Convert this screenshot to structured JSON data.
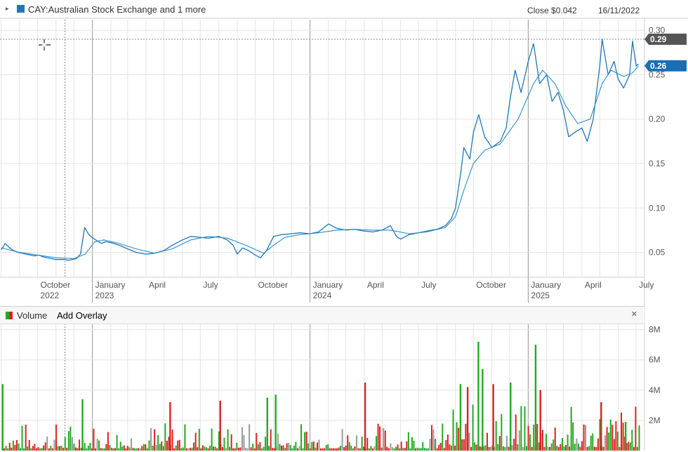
{
  "header": {
    "legend_toggle": "▸",
    "series_label": "CAY:Australian Stock Exchange and 1 more",
    "close_label": "Close $0.042",
    "date_label": "16/11/2022"
  },
  "volume_panel": {
    "label": "Volume",
    "add_overlay": "Add Overlay",
    "close": "×"
  },
  "colors": {
    "price_line": "#1f77b4",
    "ma_line": "#2a8fc9",
    "volume_up": "#22aa22",
    "volume_down": "#dd2222",
    "volume_neutral": "#999999",
    "grid": "#e3e3e3",
    "tag_dark": "#555555",
    "tag_blue": "#1a6fb3"
  },
  "chart_data": [
    {
      "type": "line",
      "series": [
        {
          "name": "CAY:Australian Stock Exchange",
          "points": [
            [
              "2022-08-01",
              0.053
            ],
            [
              "2022-08-08",
              0.06
            ],
            [
              "2022-08-15",
              0.055
            ],
            [
              "2022-08-22",
              0.052
            ],
            [
              "2022-08-29",
              0.05
            ],
            [
              "2022-09-05",
              0.049
            ],
            [
              "2022-09-12",
              0.048
            ],
            [
              "2022-09-19",
              0.047
            ],
            [
              "2022-09-26",
              0.046
            ],
            [
              "2022-10-03",
              0.047
            ],
            [
              "2022-10-10",
              0.045
            ],
            [
              "2022-10-17",
              0.044
            ],
            [
              "2022-10-24",
              0.043
            ],
            [
              "2022-10-31",
              0.042
            ],
            [
              "2022-11-07",
              0.042
            ],
            [
              "2022-11-16",
              0.042
            ],
            [
              "2022-11-21",
              0.041
            ],
            [
              "2022-11-28",
              0.042
            ],
            [
              "2022-12-05",
              0.043
            ],
            [
              "2022-12-12",
              0.048
            ],
            [
              "2022-12-19",
              0.078
            ],
            [
              "2022-12-26",
              0.07
            ],
            [
              "2023-01-02",
              0.066
            ],
            [
              "2023-01-09",
              0.063
            ],
            [
              "2023-01-16",
              0.06
            ],
            [
              "2023-01-23",
              0.062
            ],
            [
              "2023-02-01",
              0.061
            ],
            [
              "2023-02-15",
              0.058
            ],
            [
              "2023-03-01",
              0.054
            ],
            [
              "2023-03-15",
              0.05
            ],
            [
              "2023-04-01",
              0.048
            ],
            [
              "2023-04-15",
              0.049
            ],
            [
              "2023-05-01",
              0.052
            ],
            [
              "2023-05-15",
              0.058
            ],
            [
              "2023-06-01",
              0.064
            ],
            [
              "2023-06-15",
              0.068
            ],
            [
              "2023-07-01",
              0.067
            ],
            [
              "2023-07-15",
              0.066
            ],
            [
              "2023-08-01",
              0.068
            ],
            [
              "2023-08-15",
              0.064
            ],
            [
              "2023-08-25",
              0.058
            ],
            [
              "2023-09-01",
              0.048
            ],
            [
              "2023-09-10",
              0.055
            ],
            [
              "2023-09-20",
              0.052
            ],
            [
              "2023-10-01",
              0.047
            ],
            [
              "2023-10-10",
              0.044
            ],
            [
              "2023-10-20",
              0.052
            ],
            [
              "2023-11-01",
              0.068
            ],
            [
              "2023-11-15",
              0.07
            ],
            [
              "2023-12-01",
              0.071
            ],
            [
              "2023-12-15",
              0.072
            ],
            [
              "2024-01-01",
              0.071
            ],
            [
              "2024-01-15",
              0.073
            ],
            [
              "2024-02-01",
              0.082
            ],
            [
              "2024-02-15",
              0.077
            ],
            [
              "2024-03-01",
              0.075
            ],
            [
              "2024-03-15",
              0.076
            ],
            [
              "2024-04-01",
              0.074
            ],
            [
              "2024-04-15",
              0.073
            ],
            [
              "2024-05-01",
              0.075
            ],
            [
              "2024-05-15",
              0.08
            ],
            [
              "2024-05-25",
              0.068
            ],
            [
              "2024-06-01",
              0.065
            ],
            [
              "2024-06-15",
              0.07
            ],
            [
              "2024-07-01",
              0.072
            ],
            [
              "2024-07-15",
              0.074
            ],
            [
              "2024-08-01",
              0.076
            ],
            [
              "2024-08-15",
              0.08
            ],
            [
              "2024-08-25",
              0.088
            ],
            [
              "2024-09-01",
              0.1
            ],
            [
              "2024-09-10",
              0.14
            ],
            [
              "2024-09-15",
              0.168
            ],
            [
              "2024-09-25",
              0.155
            ],
            [
              "2024-10-01",
              0.185
            ],
            [
              "2024-10-10",
              0.205
            ],
            [
              "2024-10-20",
              0.18
            ],
            [
              "2024-11-01",
              0.168
            ],
            [
              "2024-11-15",
              0.175
            ],
            [
              "2024-11-25",
              0.19
            ],
            [
              "2024-12-01",
              0.22
            ],
            [
              "2024-12-10",
              0.255
            ],
            [
              "2024-12-20",
              0.23
            ],
            [
              "2025-01-01",
              0.265
            ],
            [
              "2025-01-10",
              0.285
            ],
            [
              "2025-01-20",
              0.24
            ],
            [
              "2025-02-01",
              0.25
            ],
            [
              "2025-02-10",
              0.22
            ],
            [
              "2025-02-20",
              0.23
            ],
            [
              "2025-03-01",
              0.21
            ],
            [
              "2025-03-10",
              0.18
            ],
            [
              "2025-03-20",
              0.185
            ],
            [
              "2025-04-01",
              0.19
            ],
            [
              "2025-04-10",
              0.175
            ],
            [
              "2025-04-20",
              0.2
            ],
            [
              "2025-05-01",
              0.26
            ],
            [
              "2025-05-05",
              0.29
            ],
            [
              "2025-05-15",
              0.25
            ],
            [
              "2025-05-25",
              0.265
            ],
            [
              "2025-06-01",
              0.245
            ],
            [
              "2025-06-10",
              0.235
            ],
            [
              "2025-06-20",
              0.25
            ],
            [
              "2025-06-25",
              0.288
            ],
            [
              "2025-07-01",
              0.26
            ],
            [
              "2025-07-05",
              0.262
            ]
          ]
        },
        {
          "name": "1 more",
          "points": [
            [
              "2022-08-01",
              0.055
            ],
            [
              "2022-09-01",
              0.05
            ],
            [
              "2022-10-01",
              0.047
            ],
            [
              "2022-11-01",
              0.044
            ],
            [
              "2022-12-01",
              0.043
            ],
            [
              "2022-12-20",
              0.048
            ],
            [
              "2023-01-05",
              0.062
            ],
            [
              "2023-01-20",
              0.064
            ],
            [
              "2023-02-15",
              0.06
            ],
            [
              "2023-03-15",
              0.054
            ],
            [
              "2023-04-15",
              0.049
            ],
            [
              "2023-05-15",
              0.054
            ],
            [
              "2023-06-15",
              0.064
            ],
            [
              "2023-07-15",
              0.068
            ],
            [
              "2023-08-15",
              0.066
            ],
            [
              "2023-09-15",
              0.058
            ],
            [
              "2023-10-15",
              0.049
            ],
            [
              "2023-11-01",
              0.058
            ],
            [
              "2023-11-20",
              0.067
            ],
            [
              "2023-12-15",
              0.07
            ],
            [
              "2024-01-15",
              0.072
            ],
            [
              "2024-02-15",
              0.075
            ],
            [
              "2024-03-15",
              0.076
            ],
            [
              "2024-04-15",
              0.075
            ],
            [
              "2024-05-15",
              0.075
            ],
            [
              "2024-06-15",
              0.071
            ],
            [
              "2024-07-15",
              0.073
            ],
            [
              "2024-08-15",
              0.078
            ],
            [
              "2024-09-01",
              0.09
            ],
            [
              "2024-09-15",
              0.12
            ],
            [
              "2024-10-01",
              0.15
            ],
            [
              "2024-10-20",
              0.165
            ],
            [
              "2024-11-15",
              0.172
            ],
            [
              "2024-12-15",
              0.2
            ],
            [
              "2025-01-10",
              0.24
            ],
            [
              "2025-01-25",
              0.255
            ],
            [
              "2025-02-15",
              0.24
            ],
            [
              "2025-03-05",
              0.215
            ],
            [
              "2025-03-25",
              0.195
            ],
            [
              "2025-04-15",
              0.2
            ],
            [
              "2025-05-05",
              0.24
            ],
            [
              "2025-05-20",
              0.255
            ],
            [
              "2025-06-10",
              0.248
            ],
            [
              "2025-06-25",
              0.252
            ],
            [
              "2025-07-05",
              0.26
            ]
          ]
        }
      ],
      "x_tick_labels": [
        {
          "date": "2022-10-01",
          "label": "October",
          "sub": "2022"
        },
        {
          "date": "2023-01-01",
          "label": "January",
          "sub": "2023"
        },
        {
          "date": "2023-04-01",
          "label": "April",
          "sub": ""
        },
        {
          "date": "2023-07-01",
          "label": "July",
          "sub": ""
        },
        {
          "date": "2023-10-01",
          "label": "October",
          "sub": ""
        },
        {
          "date": "2024-01-01",
          "label": "January",
          "sub": "2024"
        },
        {
          "date": "2024-04-01",
          "label": "April",
          "sub": ""
        },
        {
          "date": "2024-07-01",
          "label": "July",
          "sub": ""
        },
        {
          "date": "2024-10-01",
          "label": "October",
          "sub": ""
        },
        {
          "date": "2025-01-01",
          "label": "January",
          "sub": "2025"
        },
        {
          "date": "2025-04-01",
          "label": "April",
          "sub": ""
        },
        {
          "date": "2025-07-01",
          "label": "July",
          "sub": ""
        }
      ],
      "y_ticks": [
        {
          "value": 0.05,
          "label": "0.05"
        },
        {
          "value": 0.1,
          "label": "0.10"
        },
        {
          "value": 0.15,
          "label": "0.15"
        },
        {
          "value": 0.2,
          "label": "0.20"
        },
        {
          "value": 0.25,
          "label": "0.25"
        },
        {
          "value": 0.3,
          "label": "0.30"
        }
      ],
      "xlim": [
        "2022-07-30",
        "2025-07-15"
      ],
      "ylim": [
        0.022,
        0.312
      ],
      "crosshair": {
        "date": "2022-11-16",
        "value": 0.29
      },
      "price_tags": [
        {
          "value": 0.29,
          "label": "0.29",
          "style": "dark"
        },
        {
          "value": 0.26,
          "label": "0.26",
          "style": "blue"
        }
      ],
      "grid": true
    },
    {
      "type": "bar",
      "title": "Volume",
      "y_ticks": [
        {
          "value": 2000000,
          "label": "2M"
        },
        {
          "value": 4000000,
          "label": "4M"
        },
        {
          "value": 6000000,
          "label": "6M"
        },
        {
          "value": 8000000,
          "label": "8M"
        }
      ],
      "ylim": [
        0,
        8400000
      ],
      "highlight_bars": [
        {
          "date": "2022-08-02",
          "value": 4400000,
          "dir": "up"
        },
        {
          "date": "2022-12-14",
          "value": 3400000,
          "dir": "up"
        },
        {
          "date": "2023-05-10",
          "value": 3200000,
          "dir": "down"
        },
        {
          "date": "2023-08-02",
          "value": 3300000,
          "dir": "down"
        },
        {
          "date": "2023-10-20",
          "value": 3500000,
          "dir": "up"
        },
        {
          "date": "2023-11-03",
          "value": 3700000,
          "dir": "up"
        },
        {
          "date": "2024-04-01",
          "value": 4500000,
          "dir": "down"
        },
        {
          "date": "2024-09-08",
          "value": 4400000,
          "dir": "up"
        },
        {
          "date": "2024-09-20",
          "value": 4200000,
          "dir": "down"
        },
        {
          "date": "2024-10-08",
          "value": 7200000,
          "dir": "up"
        },
        {
          "date": "2024-10-15",
          "value": 5400000,
          "dir": "up"
        },
        {
          "date": "2024-11-02",
          "value": 4400000,
          "dir": "down"
        },
        {
          "date": "2024-12-01",
          "value": 4500000,
          "dir": "up"
        },
        {
          "date": "2025-01-12",
          "value": 7000000,
          "dir": "up"
        },
        {
          "date": "2025-01-20",
          "value": 4000000,
          "dir": "down"
        },
        {
          "date": "2025-05-02",
          "value": 3200000,
          "dir": "down"
        },
        {
          "date": "2025-06-12",
          "value": 1900000,
          "dir": "up"
        }
      ],
      "grid": true
    }
  ]
}
